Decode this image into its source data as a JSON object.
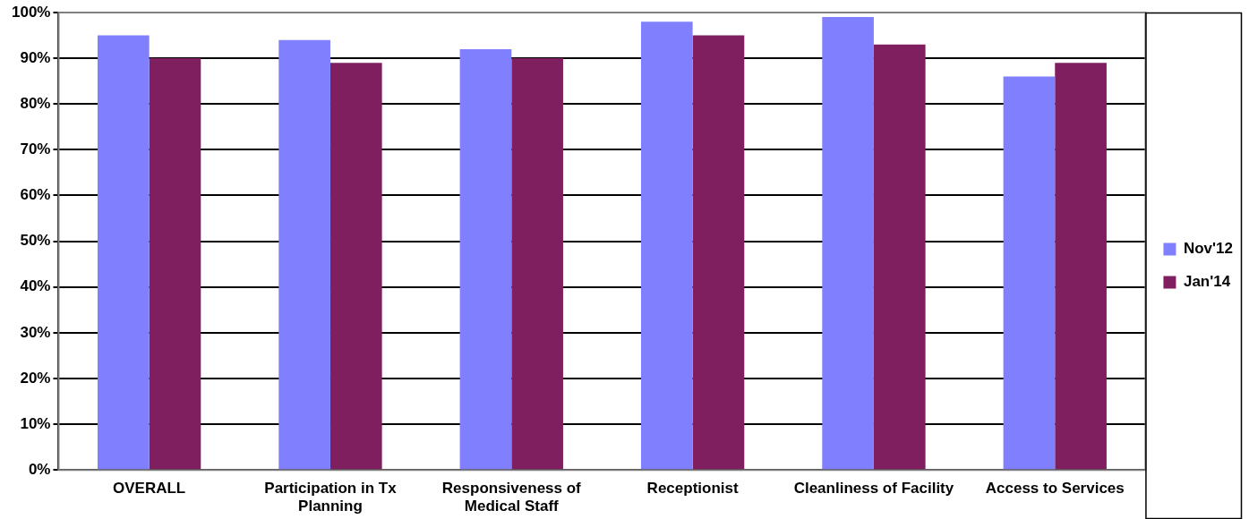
{
  "chart_data": {
    "type": "bar",
    "categories": [
      "OVERALL",
      "Participation in Tx Planning",
      "Responsiveness of Medical Staff",
      "Receptionist",
      "Cleanliness of Facility",
      "Access to Services"
    ],
    "series": [
      {
        "name": "Nov'12",
        "color": "#8080ff",
        "values": [
          95,
          94,
          92,
          98,
          99,
          86
        ]
      },
      {
        "name": "Jan'14",
        "color": "#7f1f5f",
        "values": [
          90,
          89,
          90,
          95,
          93,
          89
        ]
      }
    ],
    "ylim": [
      0,
      100
    ],
    "yticks": [
      {
        "value": 0,
        "label": "0%"
      },
      {
        "value": 10,
        "label": "10%"
      },
      {
        "value": 20,
        "label": "20%"
      },
      {
        "value": 30,
        "label": "30%"
      },
      {
        "value": 40,
        "label": "40%"
      },
      {
        "value": 50,
        "label": "50%"
      },
      {
        "value": 60,
        "label": "60%"
      },
      {
        "value": 70,
        "label": "70%"
      },
      {
        "value": 80,
        "label": "80%"
      },
      {
        "value": 90,
        "label": "90%"
      },
      {
        "value": 100,
        "label": "100%"
      }
    ],
    "grid": "y",
    "legend": "right"
  }
}
